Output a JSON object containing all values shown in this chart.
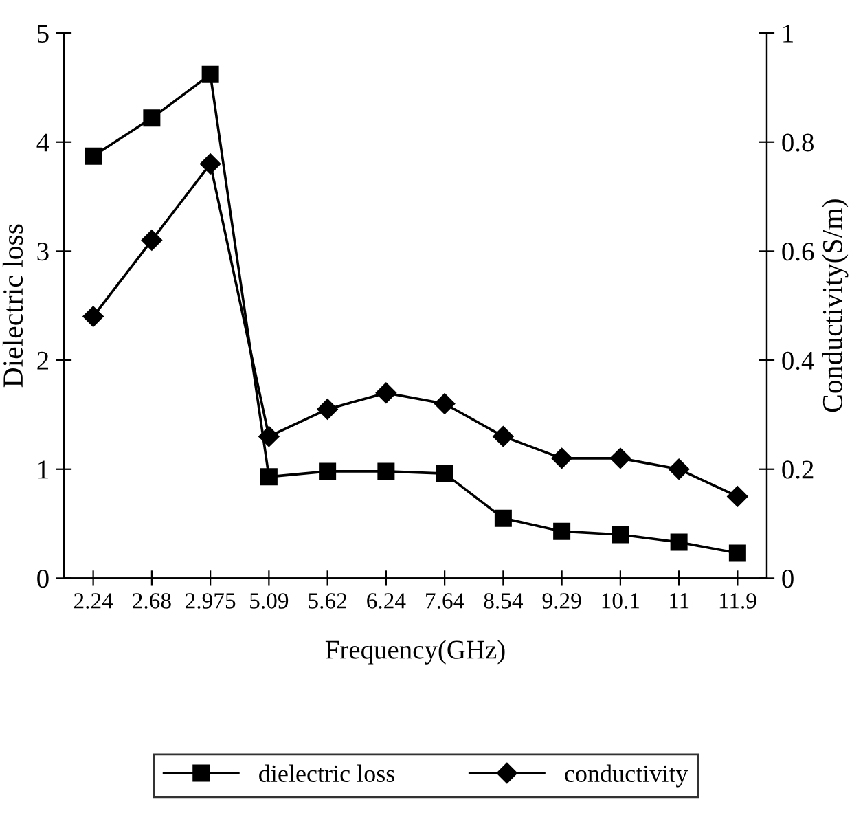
{
  "chart_data": {
    "type": "line",
    "xlabel": "Frequency(GHz)",
    "ylabel": "Dielectric loss",
    "y2label": "Conductivity(S/m)",
    "categories": [
      "2.24",
      "2.68",
      "2.975",
      "5.09",
      "5.62",
      "6.24",
      "7.64",
      "8.54",
      "9.29",
      "10.1",
      "11",
      "11.9"
    ],
    "series": [
      {
        "name": "dielectric loss",
        "color": "#000000",
        "marker": "square",
        "values": [
          3.87,
          4.22,
          4.62,
          0.93,
          0.98,
          0.98,
          0.96,
          0.55,
          0.43,
          0.4,
          0.33,
          0.23
        ]
      },
      {
        "name": "conductivity",
        "color": "#000000",
        "marker": "diamond",
        "axis": "y2",
        "values": [
          0.48,
          0.62,
          0.76,
          0.26,
          0.31,
          0.34,
          0.32,
          0.26,
          0.22,
          0.22,
          0.2,
          0.15
        ]
      }
    ],
    "ylim": [
      0,
      5
    ],
    "yticks": [
      0,
      1,
      2,
      3,
      4,
      5
    ],
    "y2lim": [
      0,
      1
    ],
    "y2ticks": [
      0,
      0.2,
      0.4,
      0.6,
      0.8,
      1
    ],
    "grid": false,
    "legend": "bottom",
    "line_style": "solid"
  }
}
